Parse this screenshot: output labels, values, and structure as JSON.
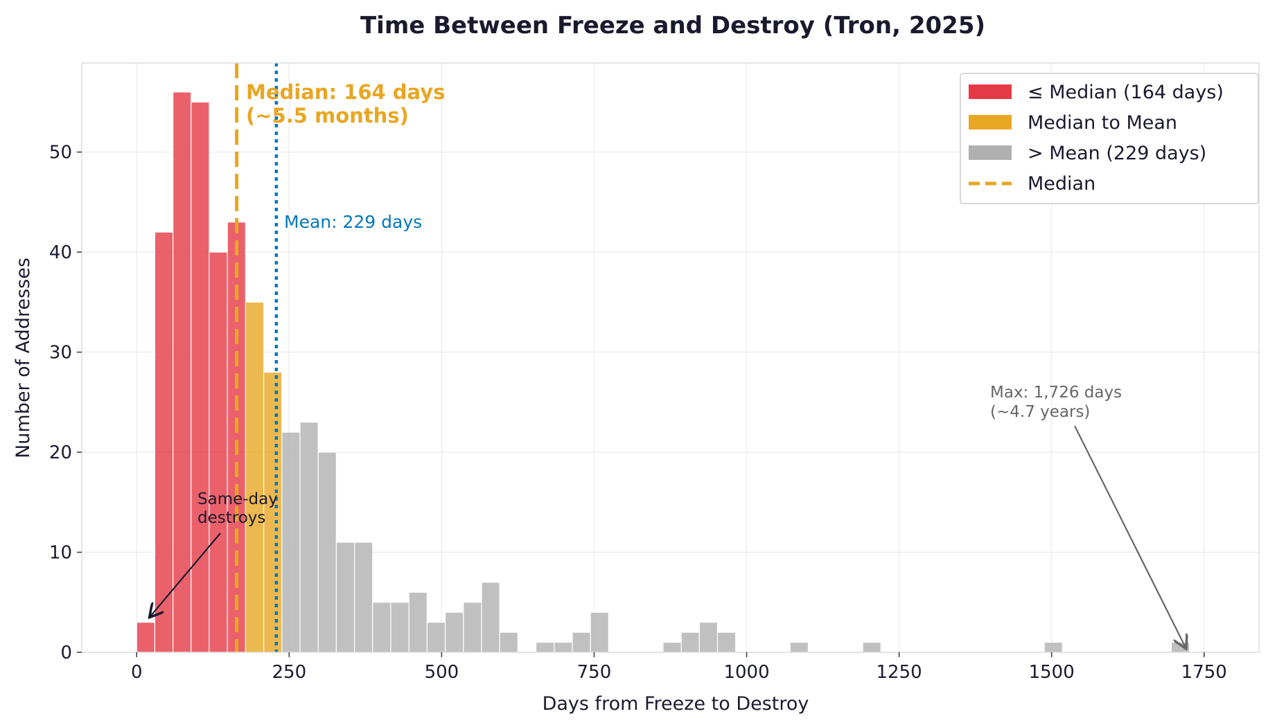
{
  "chart_data": {
    "type": "bar",
    "title": "Time Between Freeze and Destroy (Tron, 2025)",
    "xlabel": "Days from Freeze to Destroy",
    "ylabel": "Number of Addresses",
    "xlim": [
      -90,
      1840
    ],
    "ylim": [
      0,
      58.9
    ],
    "xticks": [
      0,
      250,
      500,
      750,
      1000,
      1250,
      1500,
      1750
    ],
    "xtick_labels": [
      "0",
      "250",
      "500",
      "750",
      "1000",
      "1250",
      "1500",
      "1750"
    ],
    "yticks": [
      0,
      10,
      20,
      30,
      40,
      50
    ],
    "ytick_labels": [
      "0",
      "10",
      "20",
      "30",
      "40",
      "50"
    ],
    "grid": true,
    "bin_range": [
      0,
      1726
    ],
    "counts": [
      3,
      42,
      56,
      55,
      40,
      43,
      35,
      28,
      22,
      23,
      20,
      11,
      11,
      5,
      5,
      6,
      3,
      4,
      5,
      7,
      2,
      0,
      1,
      1,
      2,
      4,
      0,
      0,
      0,
      1,
      2,
      3,
      2,
      0,
      0,
      0,
      1,
      0,
      0,
      0,
      1,
      0,
      0,
      0,
      0,
      0,
      0,
      0,
      0,
      0,
      1,
      0,
      0,
      0,
      0,
      0,
      0,
      1
    ],
    "median": 164,
    "mean": 229,
    "colors": {
      "le_median": "#E63946",
      "median_to_mean": "#E9A623",
      "gt_mean": "#B0B0B0",
      "mean_line": "#0077BB",
      "text": "#1A1A2E"
    },
    "legend": {
      "placement": "top-right",
      "entries": [
        "≤ Median (164 days)",
        "Median to Mean",
        "> Mean (229 days)",
        "Median"
      ]
    },
    "annotations": {
      "median_label_1": "Median: 164 days",
      "median_label_2": "(~5.5 months)",
      "mean_label": "Mean: 229 days",
      "sameday_1": "Same-day",
      "sameday_2": "destroys",
      "max_1": "Max: 1,726 days",
      "max_2": "(~4.7 years)"
    }
  }
}
